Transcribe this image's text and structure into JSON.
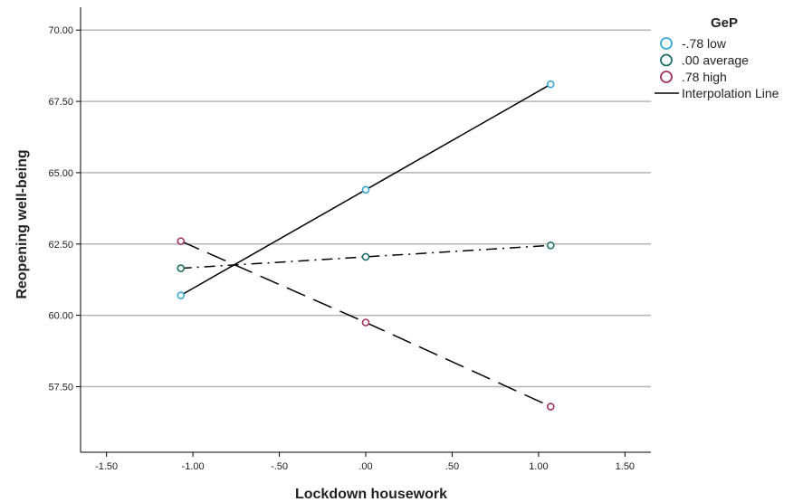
{
  "chart_data": {
    "type": "line",
    "xlabel": "Lockdown housework",
    "ylabel": "Reopening well-being",
    "xlim": [
      -1.65,
      1.65
    ],
    "ylim": [
      55.2,
      70.8
    ],
    "x_ticks": [
      -1.5,
      -1.0,
      -0.5,
      0.0,
      0.5,
      1.0,
      1.5
    ],
    "x_tick_labels": [
      "-1.50",
      "-1.00",
      "-.50",
      ".00",
      ".50",
      "1.00",
      "1.50"
    ],
    "y_ticks": [
      57.5,
      60.0,
      62.5,
      65.0,
      67.5,
      70.0
    ],
    "y_tick_labels": [
      "57.50",
      "60.00",
      "62.50",
      "65.00",
      "67.50",
      "70.00"
    ],
    "grid": "horizontal",
    "legend_position": "top-right",
    "legend": {
      "title": "GeP",
      "interpolation_label": "Interpolation Line"
    },
    "x": [
      -1.07,
      0.0,
      1.07
    ],
    "series": [
      {
        "name": "-.78 low",
        "values": [
          60.7,
          64.4,
          68.1
        ],
        "color": "#3aa6d8",
        "line_style": "solid"
      },
      {
        "name": ".00 average",
        "values": [
          61.65,
          62.05,
          62.45
        ],
        "color": "#1f6e6a",
        "line_style": "dash-dot"
      },
      {
        "name": ".78 high",
        "values": [
          62.6,
          59.75,
          56.8
        ],
        "color": "#a3335b",
        "line_style": "dashed"
      }
    ]
  }
}
